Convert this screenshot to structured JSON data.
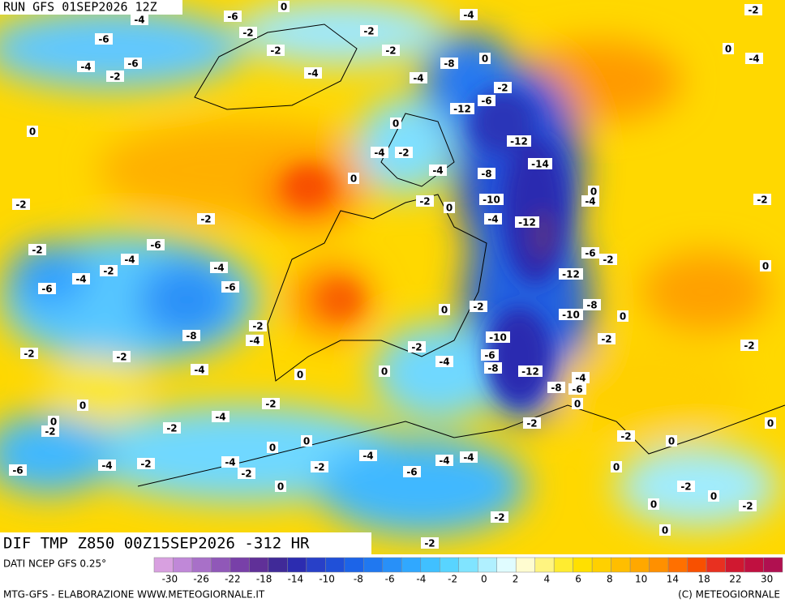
{
  "header": {
    "title": "RUN GFS 01SEP2026 12Z"
  },
  "map": {
    "caption": "DIF TMP Z850 00Z15SEP2026 -312 HR",
    "contour_labels": [
      -4,
      -6,
      0,
      -6,
      -2,
      -2,
      -4,
      -2,
      -4,
      -6,
      -2,
      -2,
      -8,
      0,
      0,
      -4,
      -2,
      -4,
      -4,
      -2,
      -6,
      -12,
      0,
      0,
      -12,
      -4,
      -2,
      -4,
      -8,
      -14,
      0,
      0,
      -2,
      -2,
      0,
      -10,
      -4,
      -2,
      -2,
      -4,
      -12,
      -6,
      -2,
      -4,
      -4,
      -2,
      -4,
      -6,
      -2,
      0,
      -6,
      -6,
      -12,
      0,
      -2,
      -10,
      -8,
      0,
      -8,
      -2,
      -4,
      -10,
      -2,
      -2,
      -2,
      -6,
      -4,
      -8,
      -2,
      -2,
      -4,
      0,
      0,
      -12,
      -4,
      -8,
      -6,
      0,
      -2,
      -4,
      0,
      -2,
      -2,
      0,
      -2,
      0,
      -2,
      0,
      0,
      0,
      -4,
      -4,
      -4,
      -6,
      -4,
      -2,
      -4,
      -2,
      -2,
      -6,
      0,
      0,
      -2,
      0,
      0,
      -2,
      -2,
      0,
      -2
    ]
  },
  "legend": {
    "source": "DATI NCEP GFS 0.25°",
    "colors": [
      "#d8a0e0",
      "#c088d8",
      "#a870c8",
      "#9058b8",
      "#7840a8",
      "#603098",
      "#402a98",
      "#2c2cb0",
      "#2840c8",
      "#2050d8",
      "#1c64e8",
      "#2078f0",
      "#2890f8",
      "#30a8ff",
      "#40c0ff",
      "#58d4ff",
      "#80e4ff",
      "#b0f0ff",
      "#e0fcff",
      "#fffcd0",
      "#fff480",
      "#ffec30",
      "#ffe000",
      "#ffd000",
      "#ffbe00",
      "#ffa800",
      "#ff9000",
      "#ff7000",
      "#f85000",
      "#e83020",
      "#d01830",
      "#c01040",
      "#b01050"
    ],
    "ticks": [
      -30,
      -26,
      -22,
      -18,
      -14,
      -10,
      -8,
      -6,
      -4,
      -2,
      0,
      2,
      4,
      6,
      8,
      10,
      14,
      18,
      22,
      30
    ]
  },
  "footer": {
    "left": "MTG-GFS - ELABORAZIONE WWW.METEOGIORNALE.IT",
    "right": "(C) METEOGIORNALE"
  }
}
